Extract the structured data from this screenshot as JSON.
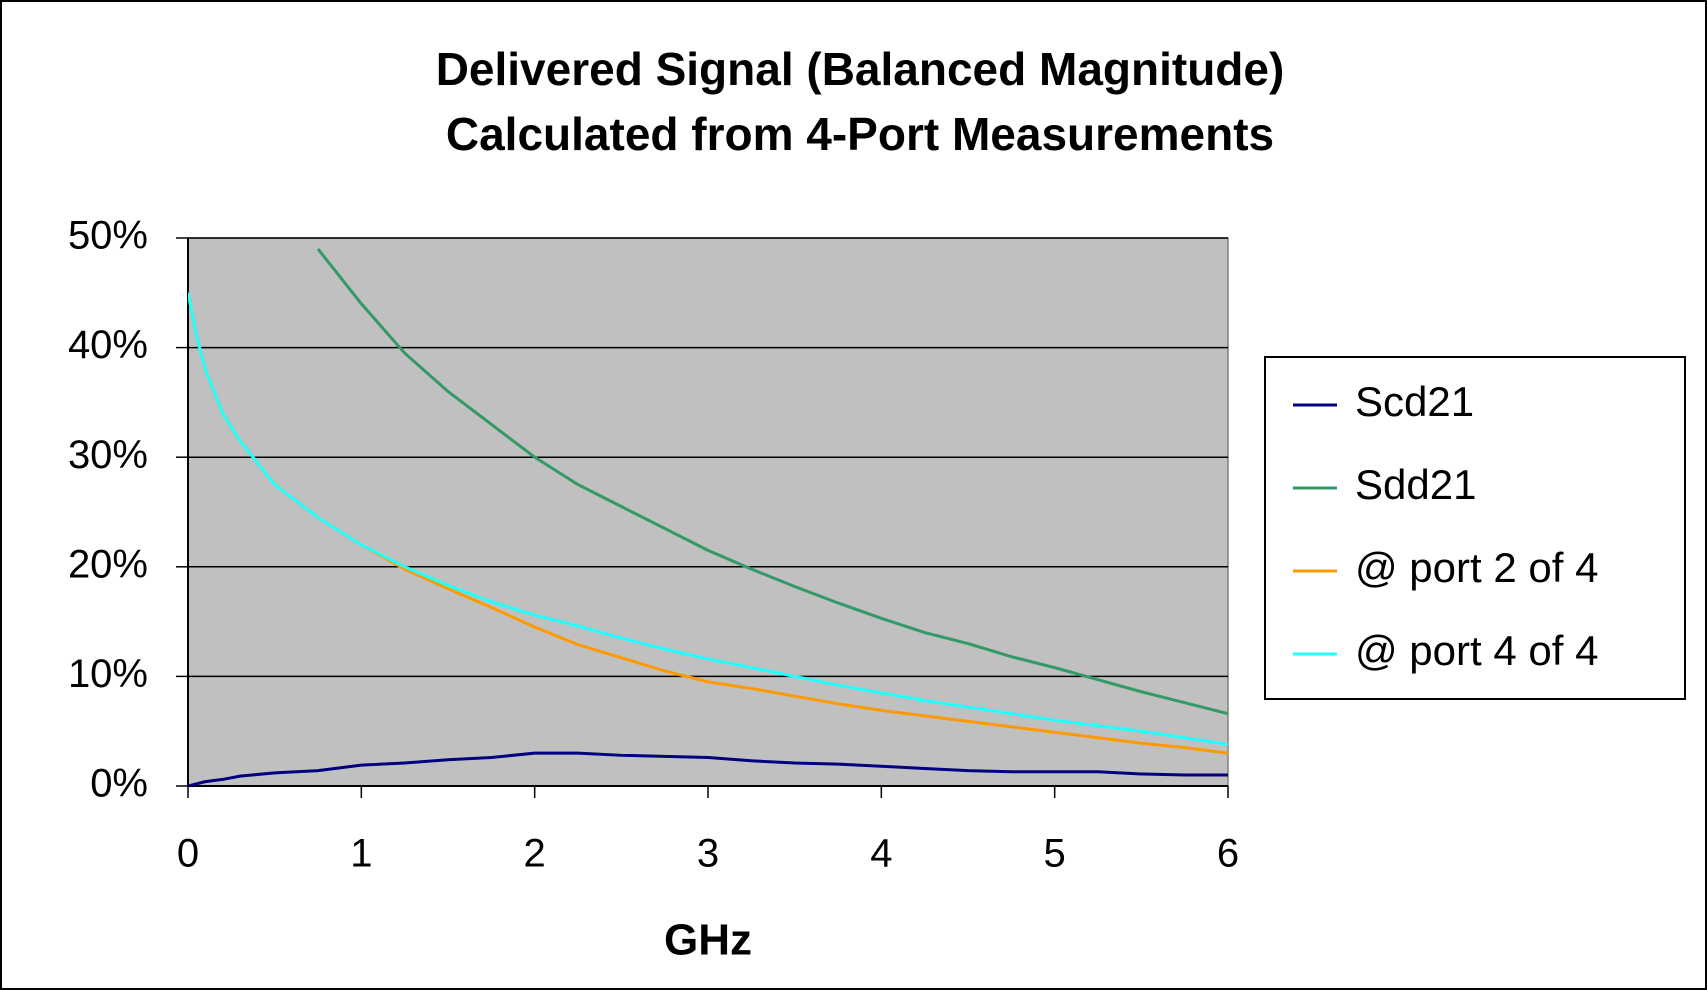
{
  "chart_data": {
    "type": "line",
    "title": [
      "Delivered Signal (Balanced Magnitude)",
      "Calculated from 4-Port Measurements"
    ],
    "x_label": "GHz",
    "x": [
      0,
      0.05,
      0.1,
      0.2,
      0.3,
      0.5,
      0.75,
      1,
      1.25,
      1.5,
      1.75,
      2,
      2.25,
      2.5,
      2.75,
      3,
      3.25,
      3.5,
      3.75,
      4,
      4.25,
      4.5,
      4.75,
      5,
      5.25,
      5.5,
      5.75,
      6
    ],
    "series": [
      {
        "name": "Scd21",
        "color": "#000080",
        "values": [
          0,
          0.2,
          0.4,
          0.6,
          0.9,
          1.2,
          1.4,
          1.9,
          2.1,
          2.4,
          2.6,
          3.0,
          3.0,
          2.8,
          2.7,
          2.6,
          2.3,
          2.1,
          2.0,
          1.8,
          1.6,
          1.4,
          1.3,
          1.3,
          1.3,
          1.1,
          1.0,
          1.0
        ]
      },
      {
        "name": "Sdd21",
        "color": "#339966",
        "values": [
          null,
          null,
          null,
          null,
          null,
          null,
          49,
          44,
          39.5,
          36,
          33,
          30,
          27.5,
          25.5,
          23.5,
          21.5,
          19.8,
          18.2,
          16.7,
          15.3,
          14,
          13,
          11.8,
          10.8,
          9.7,
          8.6,
          7.6,
          6.6
        ]
      },
      {
        "name": "@ port 2 of 4",
        "color": "#ff9900",
        "values": [
          45,
          41,
          38,
          34,
          31.5,
          27.5,
          24.5,
          22,
          19.8,
          18,
          16.3,
          14.5,
          12.9,
          11.7,
          10.5,
          9.5,
          8.9,
          8.2,
          7.5,
          6.9,
          6.4,
          5.9,
          5.4,
          4.9,
          4.4,
          3.9,
          3.5,
          3.0
        ]
      },
      {
        "name": "@ port 4 of 4",
        "color": "#22ffff",
        "values": [
          45,
          41,
          38,
          34,
          31.5,
          27.5,
          24.5,
          22,
          20,
          18.3,
          16.8,
          15.6,
          14.6,
          13.5,
          12.5,
          11.6,
          10.8,
          10,
          9.2,
          8.5,
          7.8,
          7.2,
          6.6,
          6.0,
          5.5,
          5.0,
          4.4,
          3.8
        ]
      }
    ],
    "xlim": [
      0,
      6
    ],
    "xticks": [
      0,
      1,
      2,
      3,
      4,
      5,
      6
    ],
    "ylim": [
      0,
      50
    ],
    "yticks": [
      {
        "value": 0,
        "label": "0%"
      },
      {
        "value": 10,
        "label": "10%"
      },
      {
        "value": 20,
        "label": "20%"
      },
      {
        "value": 30,
        "label": "30%"
      },
      {
        "value": 40,
        "label": "40%"
      },
      {
        "value": 50,
        "label": "50%"
      }
    ],
    "grid": true,
    "plot_background": "#c0c0c0",
    "legend": "right"
  }
}
